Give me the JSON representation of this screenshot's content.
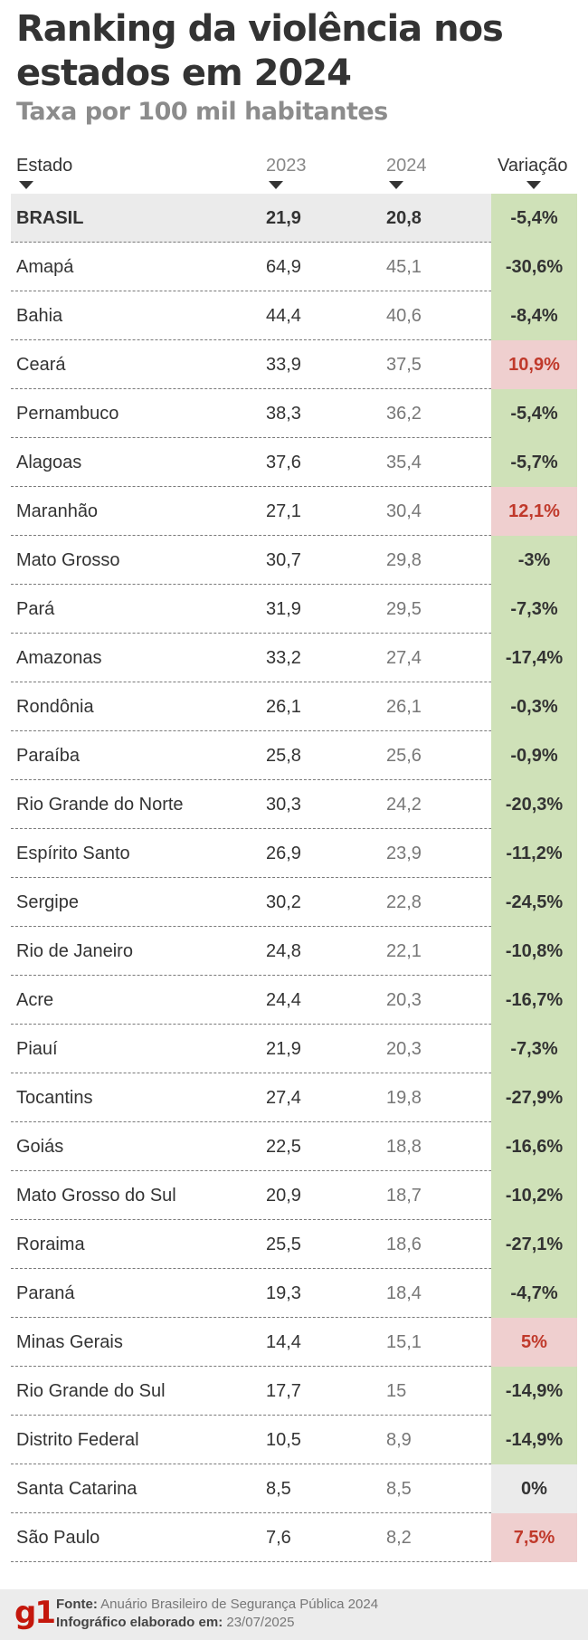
{
  "title": "Ranking da violência nos estados em 2024",
  "subtitle": "Taxa por 100 mil habitantes",
  "colors": {
    "decrease_bg": "#cfe1b8",
    "decrease_text": "#333333",
    "increase_bg": "#efcfcf",
    "increase_text": "#c0392b",
    "neutral_bg": "#ebebeb",
    "neutral_text": "#333333"
  },
  "chart_data": {
    "type": "table",
    "columns": [
      "Estado",
      "2023",
      "2024",
      "Variação"
    ],
    "sort_indicator_icon": "arrow-down-icon",
    "rows": [
      {
        "state": "BRASIL",
        "y2023": "21,9",
        "y2024": "20,8",
        "variation": "-5,4%",
        "trend": "down",
        "highlight": true
      },
      {
        "state": "Amapá",
        "y2023": "64,9",
        "y2024": "45,1",
        "variation": "-30,6%",
        "trend": "down"
      },
      {
        "state": "Bahia",
        "y2023": "44,4",
        "y2024": "40,6",
        "variation": "-8,4%",
        "trend": "down"
      },
      {
        "state": "Ceará",
        "y2023": "33,9",
        "y2024": "37,5",
        "variation": "10,9%",
        "trend": "up"
      },
      {
        "state": "Pernambuco",
        "y2023": "38,3",
        "y2024": "36,2",
        "variation": "-5,4%",
        "trend": "down"
      },
      {
        "state": "Alagoas",
        "y2023": "37,6",
        "y2024": "35,4",
        "variation": "-5,7%",
        "trend": "down"
      },
      {
        "state": "Maranhão",
        "y2023": "27,1",
        "y2024": "30,4",
        "variation": "12,1%",
        "trend": "up"
      },
      {
        "state": "Mato Grosso",
        "y2023": "30,7",
        "y2024": "29,8",
        "variation": "-3%",
        "trend": "down"
      },
      {
        "state": "Pará",
        "y2023": "31,9",
        "y2024": "29,5",
        "variation": "-7,3%",
        "trend": "down"
      },
      {
        "state": "Amazonas",
        "y2023": "33,2",
        "y2024": "27,4",
        "variation": "-17,4%",
        "trend": "down"
      },
      {
        "state": "Rondônia",
        "y2023": "26,1",
        "y2024": "26,1",
        "variation": "-0,3%",
        "trend": "down"
      },
      {
        "state": "Paraíba",
        "y2023": "25,8",
        "y2024": "25,6",
        "variation": "-0,9%",
        "trend": "down"
      },
      {
        "state": "Rio Grande do Norte",
        "y2023": "30,3",
        "y2024": "24,2",
        "variation": "-20,3%",
        "trend": "down"
      },
      {
        "state": "Espírito Santo",
        "y2023": "26,9",
        "y2024": "23,9",
        "variation": "-11,2%",
        "trend": "down"
      },
      {
        "state": "Sergipe",
        "y2023": "30,2",
        "y2024": "22,8",
        "variation": "-24,5%",
        "trend": "down"
      },
      {
        "state": "Rio de Janeiro",
        "y2023": "24,8",
        "y2024": "22,1",
        "variation": "-10,8%",
        "trend": "down"
      },
      {
        "state": "Acre",
        "y2023": "24,4",
        "y2024": "20,3",
        "variation": "-16,7%",
        "trend": "down"
      },
      {
        "state": "Piauí",
        "y2023": "21,9",
        "y2024": "20,3",
        "variation": "-7,3%",
        "trend": "down"
      },
      {
        "state": "Tocantins",
        "y2023": "27,4",
        "y2024": "19,8",
        "variation": "-27,9%",
        "trend": "down"
      },
      {
        "state": "Goiás",
        "y2023": "22,5",
        "y2024": "18,8",
        "variation": "-16,6%",
        "trend": "down"
      },
      {
        "state": "Mato Grosso do Sul",
        "y2023": "20,9",
        "y2024": "18,7",
        "variation": "-10,2%",
        "trend": "down"
      },
      {
        "state": "Roraima",
        "y2023": "25,5",
        "y2024": "18,6",
        "variation": "-27,1%",
        "trend": "down"
      },
      {
        "state": "Paraná",
        "y2023": "19,3",
        "y2024": "18,4",
        "variation": "-4,7%",
        "trend": "down"
      },
      {
        "state": "Minas Gerais",
        "y2023": "14,4",
        "y2024": "15,1",
        "variation": "5%",
        "trend": "up"
      },
      {
        "state": "Rio Grande do Sul",
        "y2023": "17,7",
        "y2024": "15",
        "variation": "-14,9%",
        "trend": "down"
      },
      {
        "state": "Distrito Federal",
        "y2023": "10,5",
        "y2024": "8,9",
        "variation": "-14,9%",
        "trend": "down"
      },
      {
        "state": "Santa Catarina",
        "y2023": "8,5",
        "y2024": "8,5",
        "variation": "0%",
        "trend": "neutral"
      },
      {
        "state": "São Paulo",
        "y2023": "7,6",
        "y2024": "8,2",
        "variation": "7,5%",
        "trend": "up"
      }
    ]
  },
  "footer": {
    "logo": "g1",
    "source_label": "Fonte:",
    "source_value": "Anuário Brasileiro de Segurança Pública 2024",
    "made_label": "Infográfico elaborado em:",
    "made_value": "23/07/2025"
  }
}
